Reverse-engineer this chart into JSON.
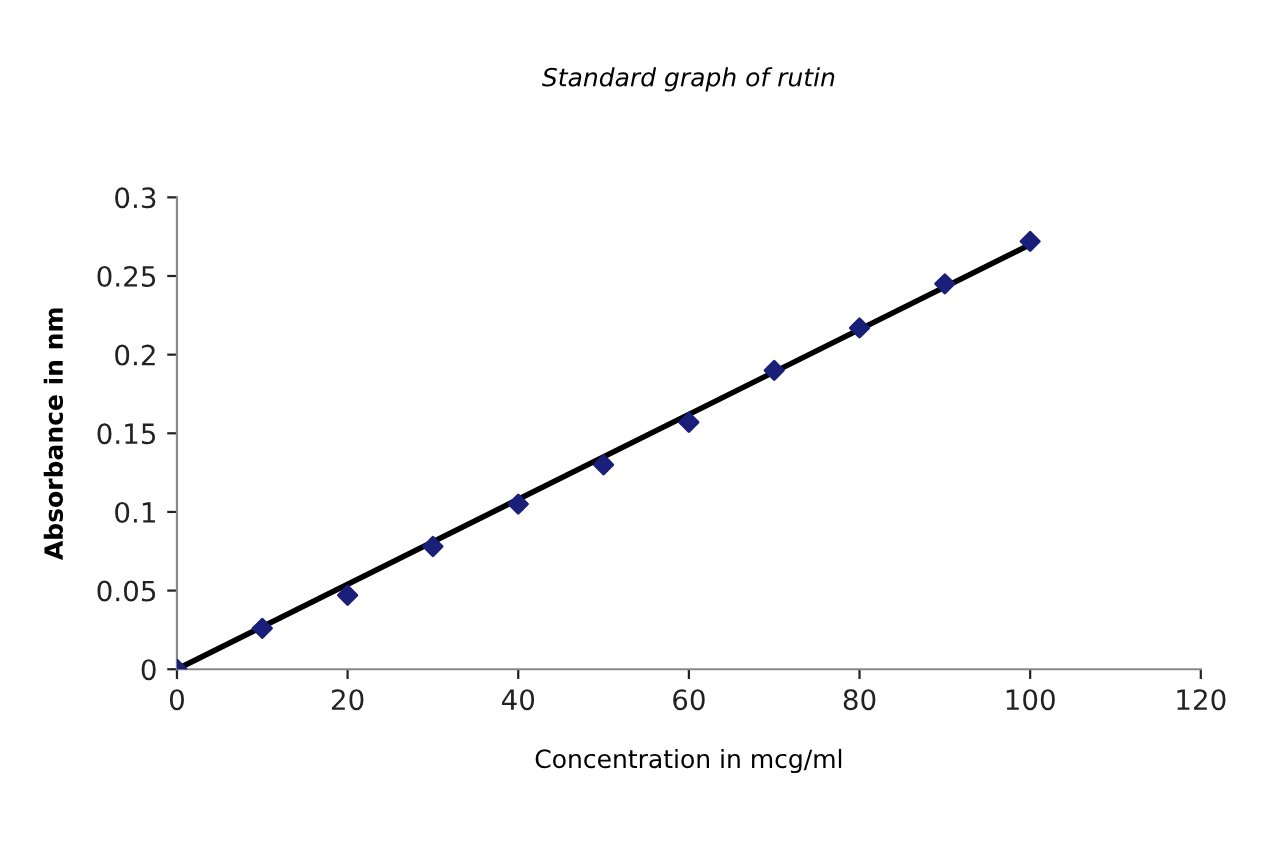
{
  "chart_data": {
    "type": "scatter",
    "title": "Standard graph of rutin",
    "xlabel": "Concentration in mcg/ml",
    "ylabel": "Absorbance in nm",
    "series": [
      {
        "color": "#1a1f7a",
        "marker": "diamond",
        "x": [
          0,
          10,
          20,
          30,
          40,
          50,
          60,
          70,
          80,
          90,
          100
        ],
        "values": [
          0,
          0.026,
          0.047,
          0.078,
          0.105,
          0.13,
          0.157,
          0.19,
          0.217,
          0.245,
          0.272
        ]
      },
      {
        "type": "line",
        "color": "#000000",
        "marker": "none",
        "line_style": "solid",
        "x": [
          0,
          100
        ],
        "values": [
          0,
          0.27
        ]
      }
    ],
    "xlim": [
      0,
      120
    ],
    "xticks": [
      0,
      20,
      40,
      60,
      80,
      100,
      120
    ],
    "ylim": [
      0,
      0.3
    ],
    "yticks": [
      0,
      0.05,
      0.1,
      0.15,
      0.2,
      0.25,
      0.3
    ],
    "grid": false,
    "legend": false
  }
}
